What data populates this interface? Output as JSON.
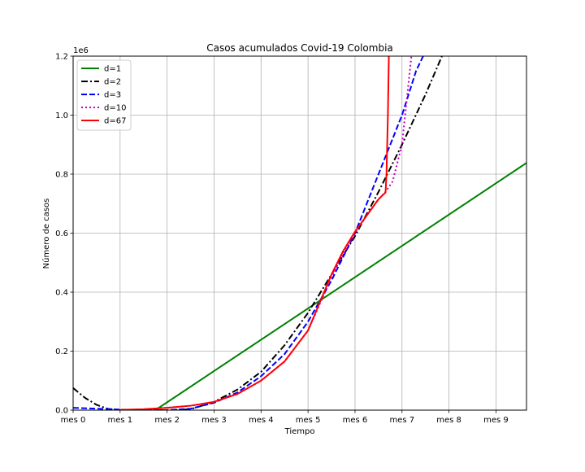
{
  "chart_data": {
    "type": "line",
    "title": "Casos acumulados Covid-19 Colombia",
    "xlabel": "Tiempo",
    "ylabel": "Número de casos",
    "y_offset_label": "1e6",
    "xlim": [
      0,
      9.65
    ],
    "ylim": [
      0,
      1200000
    ],
    "grid": true,
    "legend_position": "upper-left",
    "x_ticks": [
      {
        "value": 0,
        "label": "mes 0"
      },
      {
        "value": 1,
        "label": "mes 1"
      },
      {
        "value": 2,
        "label": "mes 2"
      },
      {
        "value": 3,
        "label": "mes 3"
      },
      {
        "value": 4,
        "label": "mes 4"
      },
      {
        "value": 5,
        "label": "mes 5"
      },
      {
        "value": 6,
        "label": "mes 6"
      },
      {
        "value": 7,
        "label": "mes 7"
      },
      {
        "value": 8,
        "label": "mes 8"
      },
      {
        "value": 9,
        "label": "mes 9"
      }
    ],
    "y_ticks": [
      {
        "value": 0,
        "label": "0.0"
      },
      {
        "value": 200000,
        "label": "0.2"
      },
      {
        "value": 400000,
        "label": "0.4"
      },
      {
        "value": 600000,
        "label": "0.6"
      },
      {
        "value": 800000,
        "label": "0.8"
      },
      {
        "value": 1000000,
        "label": "1.0"
      },
      {
        "value": 1200000,
        "label": "1.2"
      }
    ],
    "series": [
      {
        "name": "d=1",
        "color": "#008000",
        "dash": "solid",
        "x": [
          1.75,
          9.65
        ],
        "y": [
          0,
          838000
        ]
      },
      {
        "name": "d=2",
        "color": "#000000",
        "dash": "dashdot",
        "x": [
          0,
          0.25,
          0.5,
          0.75,
          1,
          1.5,
          2,
          2.5,
          3,
          3.5,
          4,
          4.5,
          5,
          5.5,
          6,
          6.5,
          7,
          7.5,
          7.85
        ],
        "y": [
          75000,
          42000,
          18000,
          4000,
          0,
          0,
          0,
          3000,
          28000,
          70000,
          130000,
          220000,
          330000,
          460000,
          590000,
          740000,
          900000,
          1070000,
          1200000
        ]
      },
      {
        "name": "d=3",
        "color": "#0000ff",
        "dash": "dashed",
        "x": [
          0,
          0.5,
          1,
          1.5,
          2,
          2.5,
          3,
          3.5,
          4,
          4.5,
          5,
          5.5,
          6,
          6.5,
          7,
          7.3,
          7.45
        ],
        "y": [
          8000,
          5000,
          2000,
          0,
          0,
          5000,
          25000,
          60000,
          115000,
          190000,
          300000,
          440000,
          600000,
          800000,
          1000000,
          1150000,
          1200000
        ]
      },
      {
        "name": "d=10",
        "color": "#bf00bf",
        "dash": "dotted",
        "x": [
          1,
          1.5,
          2,
          2.5,
          3,
          3.5,
          4,
          4.5,
          5,
          5.25,
          5.5,
          5.75,
          6,
          6.25,
          6.5,
          6.65,
          6.8,
          7,
          7.1,
          7.2
        ],
        "y": [
          0,
          3000,
          8000,
          15000,
          28000,
          55000,
          100000,
          165000,
          270000,
          360000,
          450000,
          530000,
          600000,
          660000,
          715000,
          740000,
          775000,
          900000,
          1050000,
          1200000
        ]
      },
      {
        "name": "d=67",
        "color": "#ff0000",
        "dash": "solid",
        "x": [
          1,
          1.5,
          2,
          2.5,
          3,
          3.5,
          4,
          4.5,
          5,
          5.25,
          5.5,
          5.75,
          6,
          6.25,
          6.5,
          6.65,
          6.67,
          6.7,
          6.72
        ],
        "y": [
          1000,
          3000,
          8000,
          15000,
          28000,
          55000,
          100000,
          165000,
          270000,
          365000,
          460000,
          540000,
          605000,
          660000,
          715000,
          738000,
          800000,
          1000000,
          1200000
        ]
      }
    ]
  }
}
